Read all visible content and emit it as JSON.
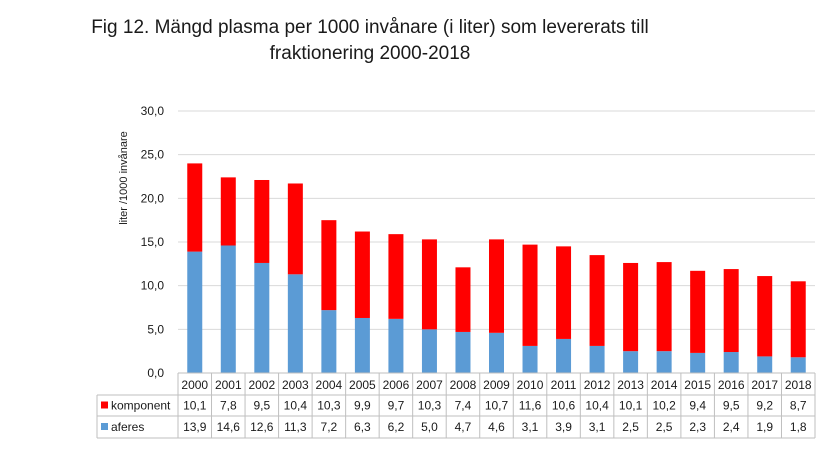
{
  "chart_data": {
    "type": "bar",
    "stacked": true,
    "title_line1": "Fig 12. Mängd plasma per 1000 invånare (i liter) som levererats till",
    "title_line2": "fraktionering 2000-2018",
    "ylabel": "liter /1000 invånare",
    "ylim": [
      0,
      30
    ],
    "yticks": [
      "0,0",
      "5,0",
      "10,0",
      "15,0",
      "20,0",
      "25,0",
      "30,0"
    ],
    "grid": true,
    "legend_placement": "data-table",
    "categories": [
      "2000",
      "2001",
      "2002",
      "2003",
      "2004",
      "2005",
      "2006",
      "2007",
      "2008",
      "2009",
      "2010",
      "2011",
      "2012",
      "2013",
      "2014",
      "2015",
      "2016",
      "2017",
      "2018"
    ],
    "series": [
      {
        "name": "aferes",
        "color": "#5b9bd5",
        "values": [
          13.9,
          14.6,
          12.6,
          11.3,
          7.2,
          6.3,
          6.2,
          5.0,
          4.7,
          4.6,
          3.1,
          3.9,
          3.1,
          2.5,
          2.5,
          2.3,
          2.4,
          1.9,
          1.8
        ],
        "labels": [
          "13,9",
          "14,6",
          "12,6",
          "11,3",
          "7,2",
          "6,3",
          "6,2",
          "5,0",
          "4,7",
          "4,6",
          "3,1",
          "3,9",
          "3,1",
          "2,5",
          "2,5",
          "2,3",
          "2,4",
          "1,9",
          "1,8"
        ]
      },
      {
        "name": "komponent",
        "color": "#ff0000",
        "values": [
          10.1,
          7.8,
          9.5,
          10.4,
          10.3,
          9.9,
          9.7,
          10.3,
          7.4,
          10.7,
          11.6,
          10.6,
          10.4,
          10.1,
          10.2,
          9.4,
          9.5,
          9.2,
          8.7
        ],
        "labels": [
          "10,1",
          "7,8",
          "9,5",
          "10,4",
          "10,3",
          "9,9",
          "9,7",
          "10,3",
          "7,4",
          "10,7",
          "11,6",
          "10,6",
          "10,4",
          "10,1",
          "10,2",
          "9,4",
          "9,5",
          "9,2",
          "8,7"
        ]
      }
    ]
  }
}
